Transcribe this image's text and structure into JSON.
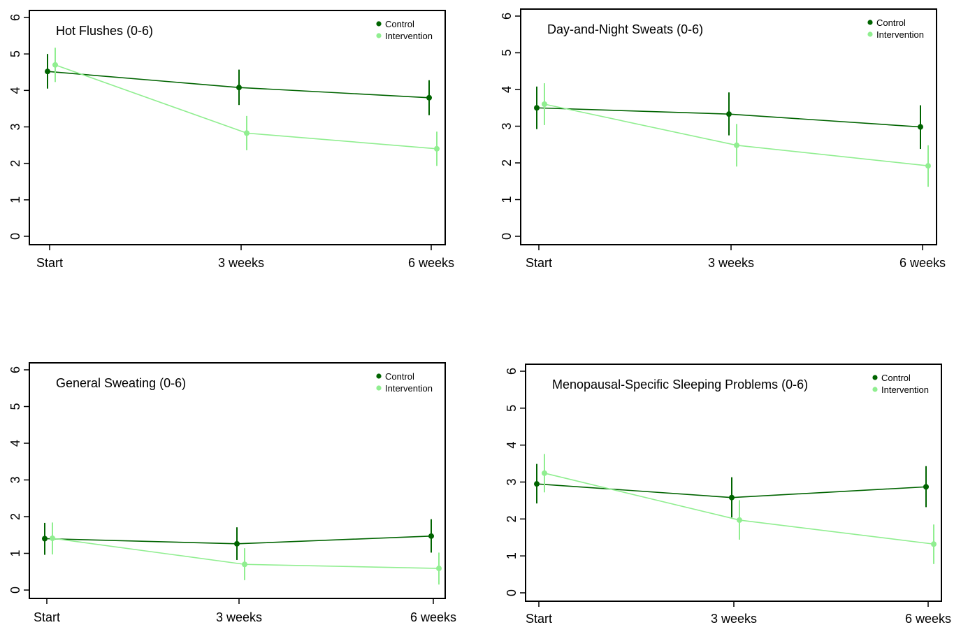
{
  "chart_data": [
    {
      "type": "line",
      "title": "Hot Flushes (0-6)",
      "categories": [
        "Start",
        "3 weeks",
        "6 weeks"
      ],
      "y_ticks": [
        "0",
        "1",
        "2",
        "3",
        "4",
        "5",
        "6"
      ],
      "ylim": [
        0,
        6
      ],
      "legend_position": "top-right",
      "series": [
        {
          "name": "Control",
          "color": "#006400",
          "values": [
            4.52,
            4.08,
            3.8
          ],
          "lower": [
            4.05,
            3.6,
            3.32
          ],
          "upper": [
            5.0,
            4.57,
            4.28
          ]
        },
        {
          "name": "Intervention",
          "color": "#90EE90",
          "values": [
            4.7,
            2.83,
            2.4
          ],
          "lower": [
            4.23,
            2.36,
            1.93
          ],
          "upper": [
            5.17,
            3.3,
            2.87
          ]
        }
      ]
    },
    {
      "type": "line",
      "title": "Day-and-Night Sweats (0-6)",
      "categories": [
        "Start",
        "3 weeks",
        "6 weeks"
      ],
      "y_ticks": [
        "0",
        "1",
        "2",
        "3",
        "4",
        "5",
        "6"
      ],
      "ylim": [
        0,
        6
      ],
      "legend_position": "top-right",
      "series": [
        {
          "name": "Control",
          "color": "#006400",
          "values": [
            3.5,
            3.33,
            2.98
          ],
          "lower": [
            2.92,
            2.75,
            2.38
          ],
          "upper": [
            4.08,
            3.92,
            3.57
          ]
        },
        {
          "name": "Intervention",
          "color": "#90EE90",
          "values": [
            3.6,
            2.48,
            1.92
          ],
          "lower": [
            3.03,
            1.9,
            1.35
          ],
          "upper": [
            4.17,
            3.06,
            2.48
          ]
        }
      ]
    },
    {
      "type": "line",
      "title": "General Sweating (0-6)",
      "categories": [
        "Start",
        "3 weeks",
        "6 weeks"
      ],
      "y_ticks": [
        "0",
        "1",
        "2",
        "3",
        "4",
        "5",
        "6"
      ],
      "ylim": [
        0,
        6
      ],
      "legend_position": "top-right",
      "series": [
        {
          "name": "Control",
          "color": "#006400",
          "values": [
            1.4,
            1.26,
            1.47
          ],
          "lower": [
            0.96,
            0.82,
            1.02
          ],
          "upper": [
            1.83,
            1.71,
            1.93
          ]
        },
        {
          "name": "Intervention",
          "color": "#90EE90",
          "values": [
            1.41,
            0.7,
            0.59
          ],
          "lower": [
            0.97,
            0.27,
            0.15
          ],
          "upper": [
            1.84,
            1.14,
            1.02
          ]
        }
      ]
    },
    {
      "type": "line",
      "title": "Menopausal-Specific Sleeping Problems (0-6)",
      "categories": [
        "Start",
        "3 weeks",
        "6 weeks"
      ],
      "y_ticks": [
        "0",
        "1",
        "2",
        "3",
        "4",
        "5",
        "6"
      ],
      "ylim": [
        0,
        6
      ],
      "legend_position": "top-right",
      "series": [
        {
          "name": "Control",
          "color": "#006400",
          "values": [
            2.95,
            2.58,
            2.87
          ],
          "lower": [
            2.42,
            2.04,
            2.32
          ],
          "upper": [
            3.49,
            3.13,
            3.43
          ]
        },
        {
          "name": "Intervention",
          "color": "#90EE90",
          "values": [
            3.24,
            1.97,
            1.32
          ],
          "lower": [
            2.72,
            1.44,
            0.78
          ],
          "upper": [
            3.76,
            2.51,
            1.85
          ]
        }
      ]
    }
  ]
}
